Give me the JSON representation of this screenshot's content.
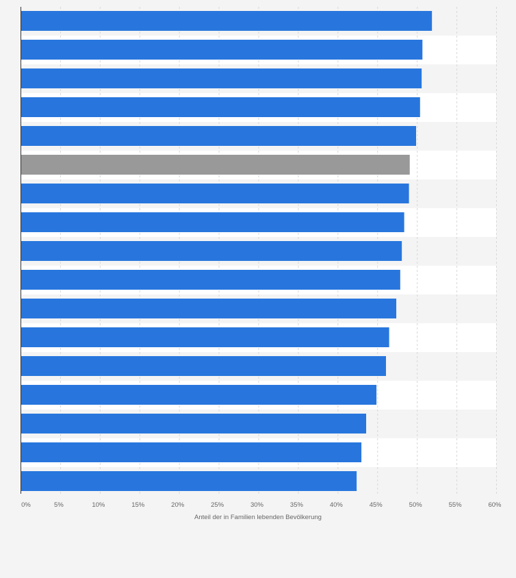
{
  "chart_data": {
    "type": "bar",
    "orientation": "horizontal",
    "title": "",
    "xlabel": "Anteil der in Familien lebenden Bevölkerung",
    "ylabel": "",
    "xlim": [
      0,
      60
    ],
    "x_ticks": [
      "0%",
      "5%",
      "10%",
      "15%",
      "20%",
      "25%",
      "30%",
      "35%",
      "40%",
      "45%",
      "50%",
      "55%",
      "60%"
    ],
    "categories": [
      "",
      "",
      "",
      "",
      "",
      "",
      "",
      "",
      "",
      "",
      "",
      "",
      "",
      "",
      "",
      "",
      ""
    ],
    "values": [
      51.9,
      50.7,
      50.6,
      50.4,
      49.9,
      49.1,
      49.0,
      48.4,
      48.1,
      47.9,
      47.4,
      46.5,
      46.1,
      44.9,
      43.6,
      43.0,
      42.4
    ],
    "highlight_index": 5,
    "colors": {
      "bar": "#2876dd",
      "highlight": "#999999",
      "background": "#f4f4f4",
      "band": "#ffffff",
      "grid": "#d8d8d8",
      "axis": "#333333",
      "text": "#666666"
    },
    "grid": true,
    "legend": "none"
  }
}
